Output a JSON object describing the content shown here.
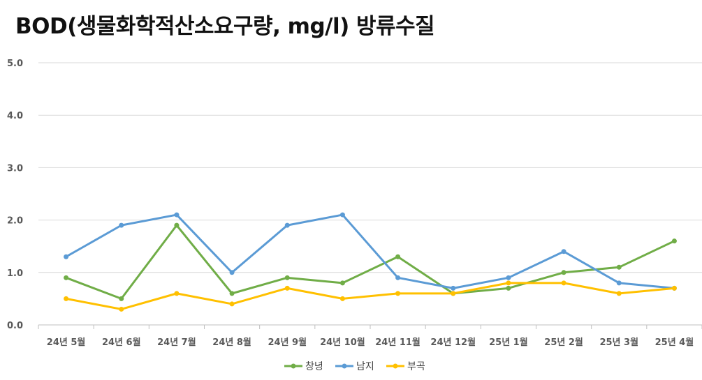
{
  "chart_data": {
    "type": "line",
    "title": "BOD(생물화학적산소요구량, mg/l) 방류수질",
    "xlabel": "",
    "ylabel": "",
    "ylim": [
      0,
      5
    ],
    "yticks": [
      "0.0",
      "1.0",
      "2.0",
      "3.0",
      "4.0",
      "5.0"
    ],
    "categories": [
      "24년 5월",
      "24년 6월",
      "24년 7월",
      "24년 8월",
      "24년 9월",
      "24년 10월",
      "24년 11월",
      "24년 12월",
      "25년 1월",
      "25년 2월",
      "25년 3월",
      "25년 4월"
    ],
    "series": [
      {
        "name": "창녕",
        "color": "#70ad47",
        "values": [
          0.9,
          0.5,
          1.9,
          0.6,
          0.9,
          0.8,
          1.3,
          0.6,
          0.7,
          1.0,
          1.1,
          1.6
        ]
      },
      {
        "name": "남지",
        "color": "#5b9bd5",
        "values": [
          1.3,
          1.9,
          2.1,
          1.0,
          1.9,
          2.1,
          0.9,
          0.7,
          0.9,
          1.4,
          0.8,
          0.7
        ]
      },
      {
        "name": "부곡",
        "color": "#ffc000",
        "values": [
          0.5,
          0.3,
          0.6,
          0.4,
          0.7,
          0.5,
          0.6,
          0.6,
          0.8,
          0.8,
          0.6,
          0.7
        ]
      }
    ],
    "grid": true,
    "legend": "bottom"
  }
}
